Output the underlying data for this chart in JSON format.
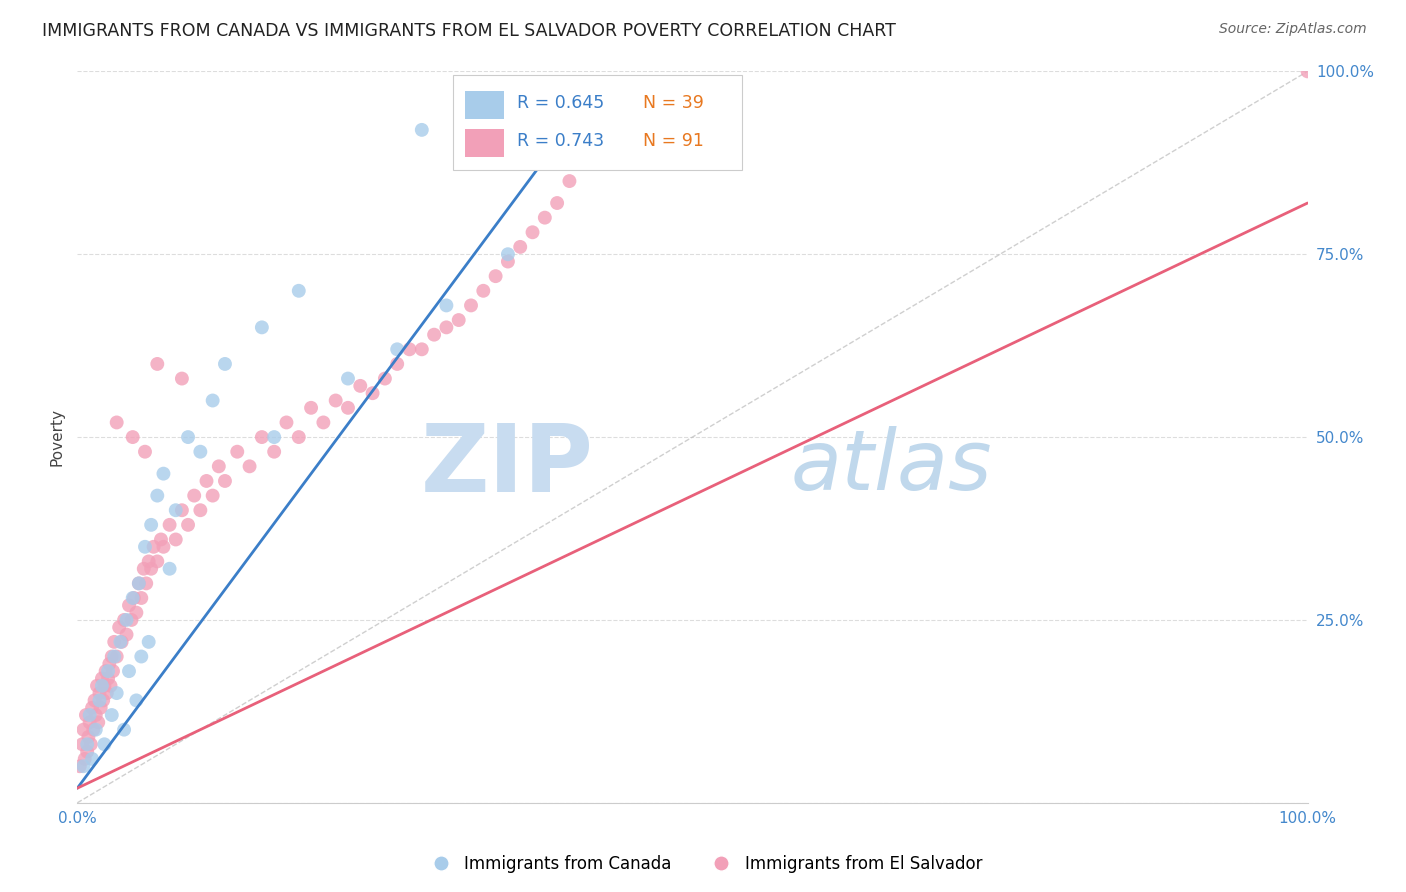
{
  "title": "IMMIGRANTS FROM CANADA VS IMMIGRANTS FROM EL SALVADOR POVERTY CORRELATION CHART",
  "source": "Source: ZipAtlas.com",
  "ylabel": "Poverty",
  "legend_canada_r": "0.645",
  "legend_canada_n": "39",
  "legend_elsalvador_r": "0.743",
  "legend_elsalvador_n": "91",
  "canada_color": "#A8CCEA",
  "elsalvador_color": "#F2A0B8",
  "canada_line_color": "#3B7EC8",
  "elsalvador_line_color": "#E8607A",
  "diagonal_color": "#BBBBBB",
  "watermark_zip_color": "#C8DCF0",
  "watermark_atlas_color": "#C0D8EC",
  "background_color": "#FFFFFF",
  "grid_color": "#DDDDDD",
  "tick_label_color": "#4488CC",
  "canada_points_x": [
    0.005,
    0.008,
    0.01,
    0.012,
    0.015,
    0.018,
    0.02,
    0.022,
    0.025,
    0.028,
    0.03,
    0.032,
    0.035,
    0.038,
    0.04,
    0.042,
    0.045,
    0.048,
    0.05,
    0.052,
    0.055,
    0.058,
    0.06,
    0.065,
    0.07,
    0.075,
    0.08,
    0.09,
    0.1,
    0.11,
    0.12,
    0.15,
    0.18,
    0.22,
    0.26,
    0.3,
    0.35,
    0.28,
    0.16
  ],
  "canada_points_y": [
    0.05,
    0.08,
    0.12,
    0.06,
    0.1,
    0.14,
    0.16,
    0.08,
    0.18,
    0.12,
    0.2,
    0.15,
    0.22,
    0.1,
    0.25,
    0.18,
    0.28,
    0.14,
    0.3,
    0.2,
    0.35,
    0.22,
    0.38,
    0.42,
    0.45,
    0.32,
    0.4,
    0.5,
    0.48,
    0.55,
    0.6,
    0.65,
    0.7,
    0.58,
    0.62,
    0.68,
    0.75,
    0.92,
    0.5
  ],
  "elsalvador_points_x": [
    0.002,
    0.004,
    0.005,
    0.006,
    0.007,
    0.008,
    0.009,
    0.01,
    0.011,
    0.012,
    0.013,
    0.014,
    0.015,
    0.016,
    0.017,
    0.018,
    0.019,
    0.02,
    0.021,
    0.022,
    0.023,
    0.024,
    0.025,
    0.026,
    0.027,
    0.028,
    0.029,
    0.03,
    0.032,
    0.034,
    0.036,
    0.038,
    0.04,
    0.042,
    0.044,
    0.046,
    0.048,
    0.05,
    0.052,
    0.054,
    0.056,
    0.058,
    0.06,
    0.062,
    0.065,
    0.068,
    0.07,
    0.075,
    0.08,
    0.085,
    0.09,
    0.095,
    0.1,
    0.105,
    0.11,
    0.115,
    0.12,
    0.13,
    0.14,
    0.15,
    0.16,
    0.17,
    0.18,
    0.19,
    0.2,
    0.21,
    0.22,
    0.23,
    0.24,
    0.25,
    0.26,
    0.27,
    0.28,
    0.29,
    0.3,
    0.31,
    0.32,
    0.33,
    0.34,
    0.35,
    0.36,
    0.37,
    0.38,
    0.39,
    0.4,
    0.032,
    0.045,
    0.055,
    0.065,
    0.085,
    1.0
  ],
  "elsalvador_points_y": [
    0.05,
    0.08,
    0.1,
    0.06,
    0.12,
    0.07,
    0.09,
    0.11,
    0.08,
    0.13,
    0.1,
    0.14,
    0.12,
    0.16,
    0.11,
    0.15,
    0.13,
    0.17,
    0.14,
    0.16,
    0.18,
    0.15,
    0.17,
    0.19,
    0.16,
    0.2,
    0.18,
    0.22,
    0.2,
    0.24,
    0.22,
    0.25,
    0.23,
    0.27,
    0.25,
    0.28,
    0.26,
    0.3,
    0.28,
    0.32,
    0.3,
    0.33,
    0.32,
    0.35,
    0.33,
    0.36,
    0.35,
    0.38,
    0.36,
    0.4,
    0.38,
    0.42,
    0.4,
    0.44,
    0.42,
    0.46,
    0.44,
    0.48,
    0.46,
    0.5,
    0.48,
    0.52,
    0.5,
    0.54,
    0.52,
    0.55,
    0.54,
    0.57,
    0.56,
    0.58,
    0.6,
    0.62,
    0.62,
    0.64,
    0.65,
    0.66,
    0.68,
    0.7,
    0.72,
    0.74,
    0.76,
    0.78,
    0.8,
    0.82,
    0.85,
    0.52,
    0.5,
    0.48,
    0.6,
    0.58,
    1.0
  ],
  "canada_line_x": [
    0.0,
    0.38
  ],
  "canada_line_y": [
    0.02,
    0.88
  ],
  "elsalvador_line_x": [
    0.0,
    1.0
  ],
  "elsalvador_line_y": [
    0.02,
    0.82
  ],
  "xlim": [
    0.0,
    1.0
  ],
  "ylim": [
    0.0,
    1.0
  ],
  "right_ytick_positions": [
    0.0,
    0.25,
    0.5,
    0.75,
    1.0
  ],
  "right_ytick_labels": [
    "",
    "25.0%",
    "50.0%",
    "75.0%",
    "100.0%"
  ],
  "xtick_positions": [
    0.0,
    1.0
  ],
  "xtick_labels": [
    "0.0%",
    "100.0%"
  ]
}
